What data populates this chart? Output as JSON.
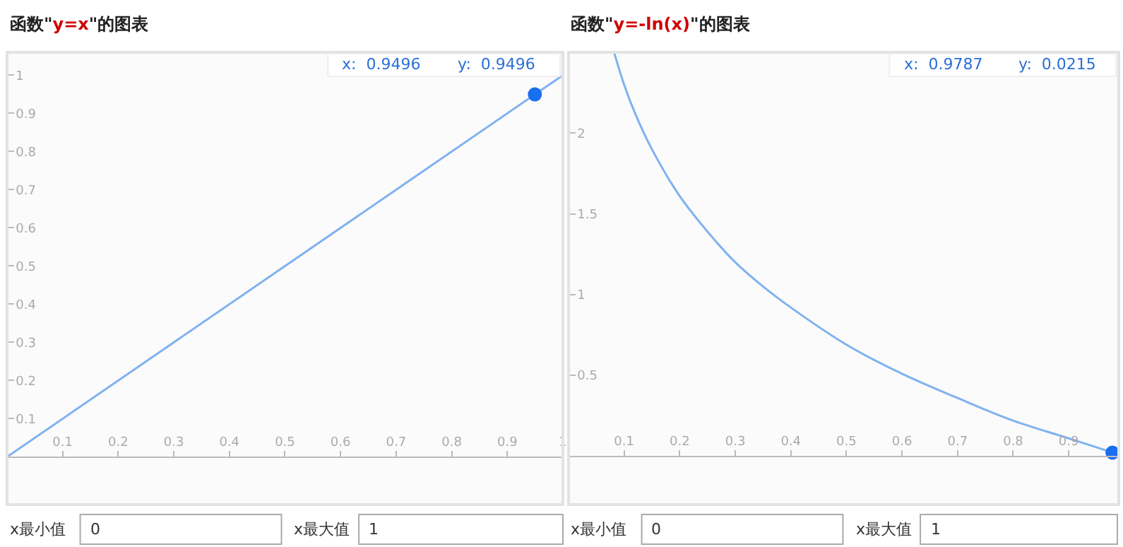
{
  "chart_data": [
    {
      "type": "line",
      "title": "函数\"y=x\"的图表",
      "xlim": [
        0,
        1.0
      ],
      "xticks": [
        0.1,
        0.2,
        0.3,
        0.4,
        0.5,
        0.6,
        0.7,
        0.8,
        0.9,
        1
      ],
      "ylim": [
        -0.125,
        1.06
      ],
      "yticks": [
        0.1,
        0.2,
        0.3,
        0.4,
        0.5,
        0.6,
        0.7,
        0.8,
        0.9,
        1
      ],
      "series": [
        {
          "color": "#7fb2f0",
          "x": [
            0,
            0.5,
            1.0
          ],
          "values": [
            0,
            0.5,
            1.0
          ]
        },
        {
          "type": "scatter",
          "color": "#1a6ef0",
          "marker": "circle",
          "x": [
            0.9496
          ],
          "values": [
            0.9496
          ]
        }
      ],
      "annotations": [
        "x:  0.9496",
        "y:  0.9496",
        "x最小值",
        "0",
        "x最大值",
        "1"
      ]
    },
    {
      "type": "line",
      "title": "函数\"y=-ln(x)\"的图表",
      "xlim": [
        0,
        0.99
      ],
      "xticks": [
        0.1,
        0.2,
        0.3,
        0.4,
        0.5,
        0.6,
        0.7,
        0.8,
        0.9
      ],
      "ylim": [
        -0.3,
        2.5
      ],
      "yticks": [
        0.5,
        1,
        1.5,
        2
      ],
      "series": [
        {
          "color": "#7fb2f0",
          "x": [
            0.082,
            0.1,
            0.12,
            0.15,
            0.2,
            0.25,
            0.3,
            0.35,
            0.4,
            0.5,
            0.6,
            0.7,
            0.8,
            0.9,
            0.99
          ],
          "values": [
            2.5,
            2.3,
            2.12,
            1.9,
            1.61,
            1.39,
            1.2,
            1.05,
            0.92,
            0.69,
            0.51,
            0.36,
            0.22,
            0.11,
            0.01
          ]
        },
        {
          "type": "scatter",
          "color": "#1a6ef0",
          "marker": "circle",
          "x": [
            0.9787
          ],
          "values": [
            0.0215
          ]
        }
      ],
      "annotations": [
        "x:  0.9787",
        "y:  0.0215",
        "x最小值",
        "0",
        "x最大值",
        "1"
      ]
    }
  ]
}
